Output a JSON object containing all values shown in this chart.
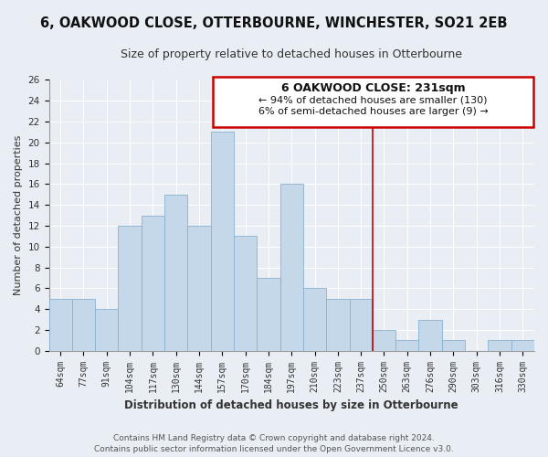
{
  "title": "6, OAKWOOD CLOSE, OTTERBOURNE, WINCHESTER, SO21 2EB",
  "subtitle": "Size of property relative to detached houses in Otterbourne",
  "xlabel": "Distribution of detached houses by size in Otterbourne",
  "ylabel": "Number of detached properties",
  "bar_color": "#c5d8ea",
  "bar_edge_color": "#8ab0cc",
  "categories": [
    "64sqm",
    "77sqm",
    "91sqm",
    "104sqm",
    "117sqm",
    "130sqm",
    "144sqm",
    "157sqm",
    "170sqm",
    "184sqm",
    "197sqm",
    "210sqm",
    "223sqm",
    "237sqm",
    "250sqm",
    "263sqm",
    "276sqm",
    "290sqm",
    "303sqm",
    "316sqm",
    "330sqm"
  ],
  "values": [
    5,
    5,
    4,
    12,
    13,
    15,
    12,
    21,
    11,
    7,
    16,
    6,
    5,
    5,
    2,
    1,
    3,
    1,
    0,
    1,
    1
  ],
  "ylim": [
    0,
    26
  ],
  "yticks": [
    0,
    2,
    4,
    6,
    8,
    10,
    12,
    14,
    16,
    18,
    20,
    22,
    24,
    26
  ],
  "vline_x": 13.5,
  "vline_color": "#cc0000",
  "annotation_title": "6 OAKWOOD CLOSE: 231sqm",
  "annotation_line1": "← 94% of detached houses are smaller (130)",
  "annotation_line2": "6% of semi-detached houses are larger (9) →",
  "annotation_box_color": "#ffffff",
  "annotation_border_color": "#cc0000",
  "footer_line1": "Contains HM Land Registry data © Crown copyright and database right 2024.",
  "footer_line2": "Contains public sector information licensed under the Open Government Licence v3.0.",
  "bg_color": "#e8eef4",
  "grid_color": "#ffffff",
  "title_fontsize": 10.5,
  "subtitle_fontsize": 9,
  "xlabel_fontsize": 8.5,
  "ylabel_fontsize": 8,
  "tick_fontsize": 7,
  "footer_fontsize": 6.5,
  "annotation_title_fontsize": 9,
  "annotation_line_fontsize": 8
}
